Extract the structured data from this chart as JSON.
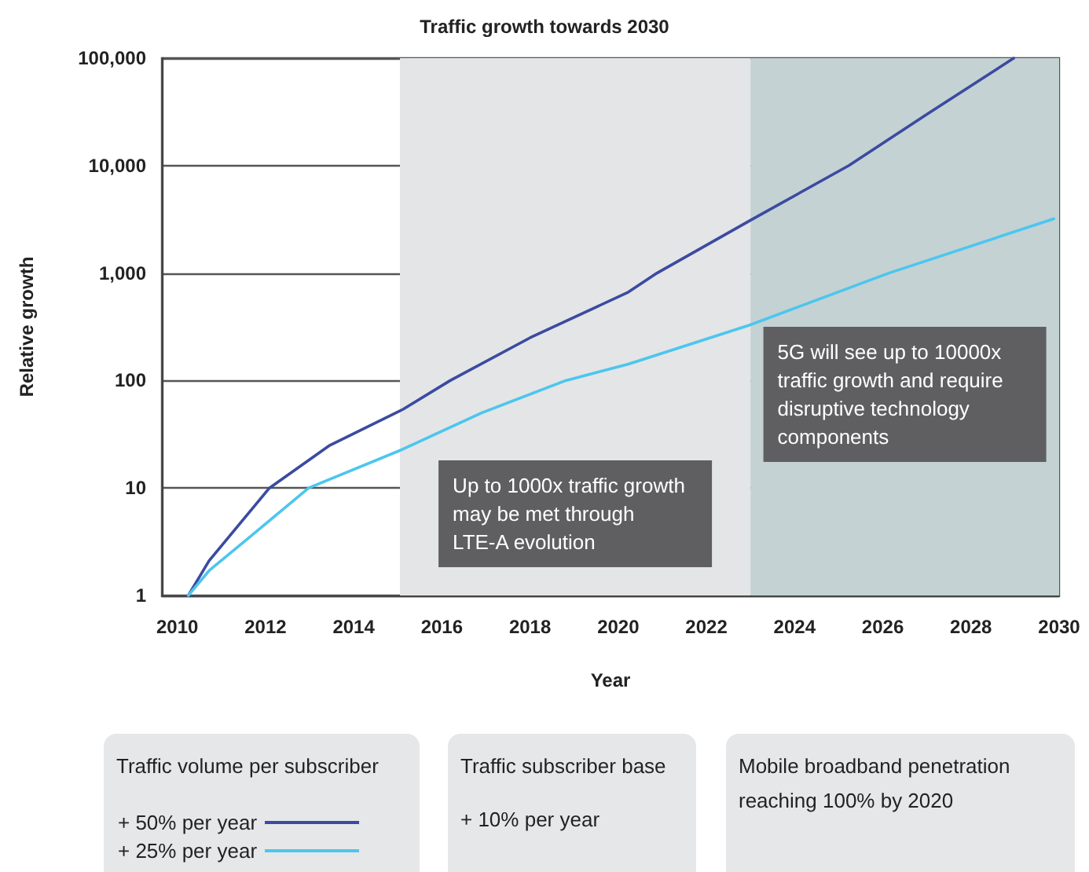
{
  "chart_data": {
    "type": "line",
    "title": "Traffic growth towards 2030",
    "xlabel": "Year",
    "ylabel": "Relative growth",
    "legend_title": "Traffic volume per subscriber",
    "series": [
      {
        "name": "+ 50% per year",
        "color": "#3b4ba0",
        "x": [
          2010.25,
          2010.72,
          2012.09,
          2013.46,
          2015.12,
          2016.19,
          2018,
          2020.23,
          2020.88,
          2023,
          2025.23,
          2027,
          2028.97
        ],
        "values": [
          1,
          2.1,
          10,
          25,
          54,
          100,
          250,
          665,
          1000,
          3100,
          10000,
          30000,
          100000
        ]
      },
      {
        "name": "+ 25% per year",
        "color": "#4cc6ee",
        "x": [
          2010.25,
          2010.72,
          2011.68,
          2012.98,
          2015.12,
          2016.9,
          2018.81,
          2020.23,
          2022.97,
          2026.14,
          2029.88
        ],
        "values": [
          1,
          1.7,
          3.6,
          10,
          23,
          50,
          100,
          142,
          327,
          1000,
          3200
        ]
      }
    ],
    "xlim": [
      2009.65,
      2030
    ],
    "xticks": [
      2010,
      2012,
      2014,
      2016,
      2018,
      2020,
      2022,
      2024,
      2026,
      2028,
      2030
    ],
    "log": true,
    "ylim": [
      1,
      100000
    ],
    "yticks": [
      1,
      10,
      100,
      {
        "value": 1000,
        "label": "1,000"
      },
      {
        "value": 10000,
        "label": "10,000"
      },
      {
        "value": 100000,
        "label": "100,000"
      }
    ],
    "bands": [
      {
        "axis": "x",
        "from": 2015.05,
        "to": 2023,
        "label": "Up to 1000x traffic growth may be met through LTE-A evolution",
        "color": "#e4e5e7"
      },
      {
        "axis": "x",
        "from": 2023,
        "to": 2030,
        "label": "5G will see up to 10000x traffic growth and require disruptive technology components",
        "color": "#c4d2d4"
      }
    ],
    "annotations": [
      "Traffic subscriber base",
      "+ 10% per year",
      "Mobile broadband penetration reaching 100% by 2020"
    ],
    "grid": "y",
    "legend": "bottom left",
    "marker": "none",
    "line_style": "solid"
  }
}
